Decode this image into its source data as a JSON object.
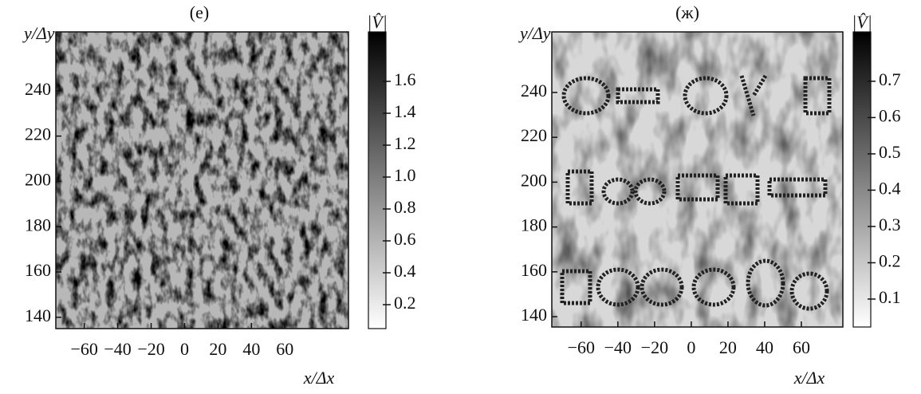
{
  "panels": [
    {
      "label": "(е)",
      "x_label": "x/Δx",
      "y_label": "y/Δy",
      "colorbar_label": "|V̂|",
      "xlim": [
        -77,
        98
      ],
      "xticks": [
        {
          "value": -60,
          "label": "−60"
        },
        {
          "value": -40,
          "label": "−40"
        },
        {
          "value": -20,
          "label": "−20"
        },
        0,
        20,
        40,
        60
      ],
      "ylim": [
        135,
        266
      ],
      "yticks": [
        140,
        160,
        180,
        200,
        220,
        240
      ],
      "colorbar_lim": [
        0.05,
        1.91
      ],
      "colorbar_ticks": [
        0.2,
        0.4,
        0.6,
        0.8,
        {
          "value": 1,
          "label": "1.0"
        },
        1.2,
        1.4,
        1.6
      ]
    },
    {
      "label": "(ж)",
      "x_label": "x/Δx",
      "y_label": "y/Δy",
      "colorbar_label": "|V̂|",
      "xlim": [
        -76,
        82.6
      ],
      "xticks": [
        {
          "value": -60,
          "label": "−60"
        },
        {
          "value": -40,
          "label": "−40"
        },
        {
          "value": -20,
          "label": "−20"
        },
        0,
        20,
        40,
        60
      ],
      "ylim": [
        135.4,
        267
      ],
      "yticks": [
        140,
        160,
        180,
        200,
        220,
        240
      ],
      "colorbar_lim": [
        0.023,
        0.836
      ],
      "colorbar_ticks": [
        0.1,
        0.2,
        0.3,
        0.4,
        0.5,
        0.6,
        0.7
      ]
    }
  ]
}
